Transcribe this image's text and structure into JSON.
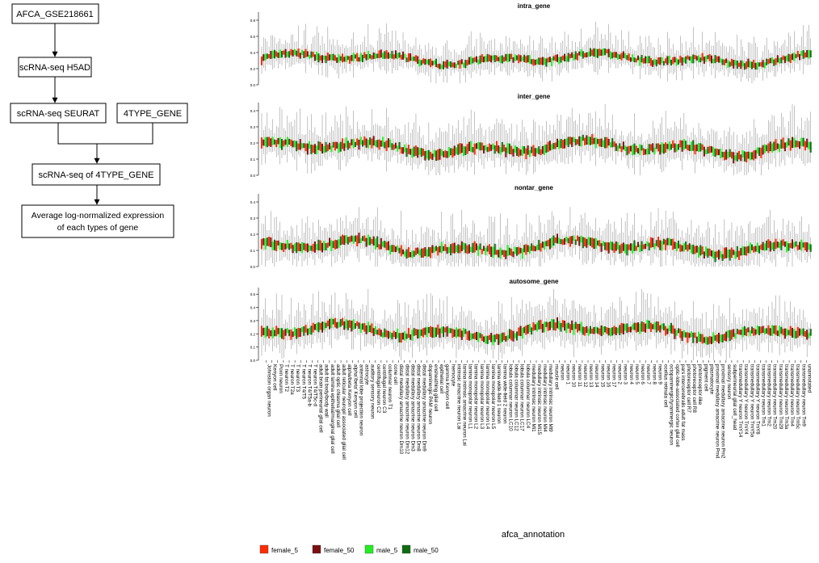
{
  "flowchart": {
    "nodes": {
      "source": "AFCA_GSE218661",
      "h5ad": "scRNA-seq H5AD",
      "seurat": "scRNA-seq SEURAT",
      "gene4": "4TYPE_GENE",
      "merged": "scRNA-seq of 4TYPE_GENE",
      "result_line1": "Average log-normalized expression",
      "result_line2": "of each types of gene"
    }
  },
  "chart_data": {
    "type": "box",
    "xlabel": "afca_annotation",
    "legend": {
      "placement": "bottom",
      "entries": [
        {
          "name": "female_5",
          "color": "#ff2a00"
        },
        {
          "name": "female_50",
          "color": "#7a1010"
        },
        {
          "name": "male_5",
          "color": "#22ee22"
        },
        {
          "name": "male_50",
          "color": "#0e6b0e"
        }
      ]
    },
    "categories": [
      "Johnston organ neuron",
      "Kenyon cell",
      "Poxn neuron",
      "T neuron T2",
      "T neuron T2a",
      "T neuron T3",
      "T neuron T4/T5",
      "T neuron T4/T5a-b",
      "T neuron T4/T5c-d",
      "adult brain perineurial glial cell",
      "adult fat body/body wall",
      "adult lamina epithelial/marginal glial cell",
      "adult optic chiasma glial cell",
      "adult reticular neuropil associated glial cell",
      "alpha/beta Kenyon cell",
      "alpha'/beta' Kenyon cell",
      "antennal lobe projection neuron",
      "astrocyte",
      "auditory sensory neuron",
      "centrifugal neuron C2",
      "centrifugal neuron C3",
      "columnar neuron T1",
      "cone cell",
      "distal medullary amacrine neuron Dm10",
      "distal medullary amacrine neuron Dm12",
      "distal medullary amacrine neuron Dm3",
      "distal medullary amacrine neuron Dm8",
      "distal medullary amacrine neuron Dm9",
      "dopaminergic PAM neuron",
      "ensheathing glial cell",
      "epithelial cell",
      "gamma Kenyon cell",
      "hemocyte",
      "intrinsic amacrine neuron Lai",
      "lamina intrinsic amacrine neuron Lai",
      "lamina monopolar neuron L1",
      "lamina monopolar neuron L2",
      "lamina monopolar neuron L3",
      "lamina monopolar neuron L4",
      "lamina monopolar neuron L5",
      "lamina wide-field 1 neuron",
      "lamina wide-field 2 neuron",
      "lobula columnar neuron LC10",
      "lobula columnar neuron LC12",
      "lobula columnar neuron LC17",
      "lobula columnar neuron LC4",
      "medullary intrinsic neuron Mi1",
      "medullary intrinsic neuron Mi15",
      "medullary intrinsic neuron Mi4",
      "medullary intrinsic neuron Mi9",
      "muscle cell",
      "neuron",
      "neuron 1",
      "neuron 10",
      "neuron 11",
      "neuron 12",
      "neuron 13",
      "neuron 14",
      "neuron 15",
      "neuron 16",
      "neuron 17",
      "neuron 2",
      "neuron 3",
      "neuron 4",
      "neuron 5",
      "neuron 6",
      "neuron 7",
      "neuron 8",
      "neuron 9",
      "ocellus retinula cell",
      "octopaminergic/tyraminergic neuron",
      "optic-lobe-associated cortex glial cell",
      "pars intercerebralis adult fat mass",
      "photoreceptor cell R7",
      "photoreceptor cell R8",
      "photoreceptor-like",
      "pigment cell",
      "plasmatocyte",
      "proximal medullary amacrine neuron Pm4",
      "proximal medullary amacrine neuron Pm2",
      "sensory neuron",
      "subperineurial glial cell_head",
      "transmedullary Y neuron TmY14",
      "transmedullary Y neuron TmY4",
      "transmedullary Y neuron TmY5a",
      "transmedullary Y neuron TmY8",
      "transmedullary neuron Tm1",
      "transmedullary neuron Tm2",
      "transmedullary neuron Tm20",
      "transmedullary neuron Tm29",
      "transmedullary neuron Tm3a",
      "transmedullary neuron Tm4",
      "transmedullary neuron Tm5c",
      "transmedullary neuron Tm9",
      "unannotated"
    ],
    "panels": [
      {
        "title": "intra_gene",
        "ylim": [
          0,
          0.9
        ],
        "yticks": [
          0.0,
          0.2,
          0.4,
          0.6,
          0.8
        ],
        "base": 0.32,
        "amp": 0.08
      },
      {
        "title": "inter_gene",
        "ylim": [
          0,
          0.45
        ],
        "yticks": [
          0.0,
          0.1,
          0.2,
          0.3,
          0.4
        ],
        "base": 0.17,
        "amp": 0.05
      },
      {
        "title": "nontar_gene",
        "ylim": [
          0,
          0.45
        ],
        "yticks": [
          0.0,
          0.1,
          0.2,
          0.3,
          0.4
        ],
        "base": 0.12,
        "amp": 0.05
      },
      {
        "title": "autosome_gene",
        "ylim": [
          0,
          0.55
        ],
        "yticks": [
          0.0,
          0.1,
          0.2,
          0.3,
          0.4,
          0.5
        ],
        "base": 0.22,
        "amp": 0.06
      }
    ]
  }
}
